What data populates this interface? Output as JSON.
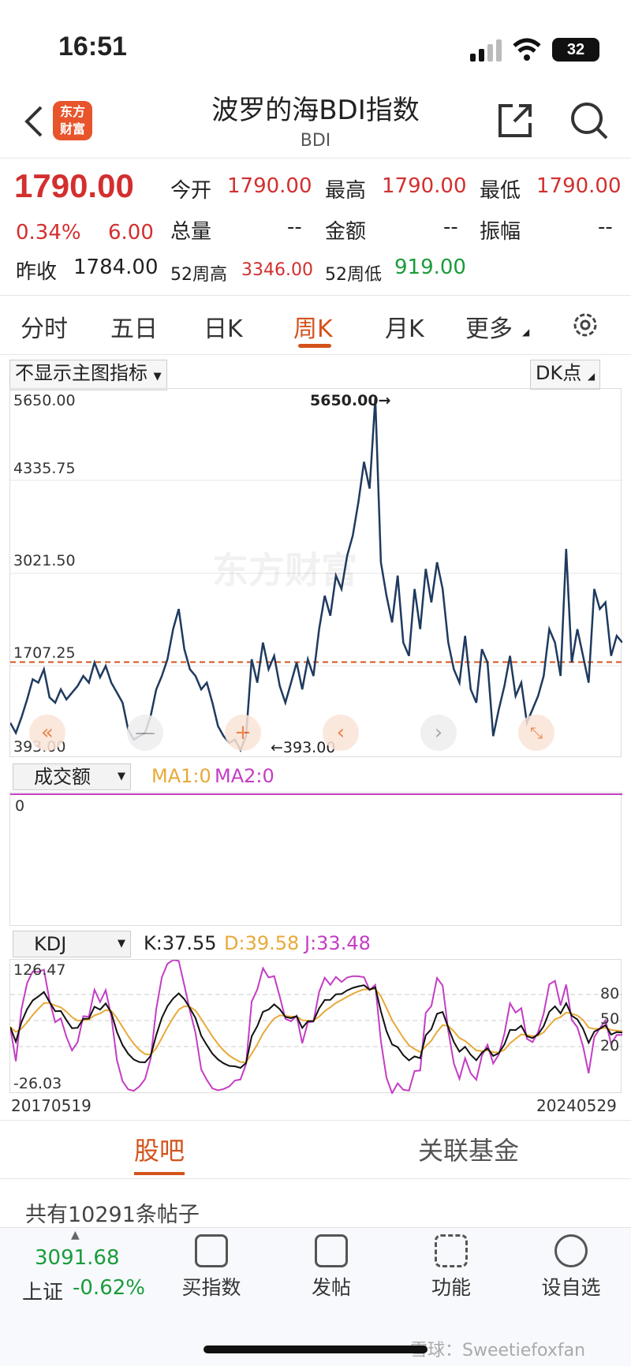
{
  "status": {
    "time": "16:51",
    "battery": "32"
  },
  "nav": {
    "logo_line1": "东方",
    "logo_line2": "财富",
    "title": "波罗的海BDI指数",
    "subtitle": "BDI"
  },
  "quote": {
    "price": "1790.00",
    "change_pct": "0.34%",
    "change": "6.00",
    "prev_close_label": "昨收",
    "prev_close": "1784.00",
    "open_label": "今开",
    "open": "1790.00",
    "high_label": "最高",
    "high": "1790.00",
    "low_label": "最低",
    "low": "1790.00",
    "volume_label": "总量",
    "volume": "--",
    "amount_label": "金额",
    "amount": "--",
    "amplitude_label": "振幅",
    "amplitude": "--",
    "wk52_high_label": "52周高",
    "wk52_high": "3346.00",
    "wk52_low_label": "52周低",
    "wk52_low": "919.00"
  },
  "tabs": [
    "分时",
    "五日",
    "日K",
    "周K",
    "月K",
    "更多"
  ],
  "active_tab": "周K",
  "chart": {
    "main_indicator_dropdown": "不显示主图指标",
    "dk_button": "DK点",
    "y_labels": [
      "5650.00",
      "4335.75",
      "3021.50",
      "1707.25",
      "393.00"
    ],
    "max_marker": "5650.00",
    "min_marker": "393.00",
    "watermark": "东方财富",
    "volume_dropdown": "成交额",
    "ma1": "MA1:0",
    "ma2": "MA2:0",
    "volume_zero": "0",
    "kdj_dropdown": "KDJ",
    "k_value": "K:37.55",
    "d_value": "D:39.58",
    "j_value": "J:33.48",
    "kdj_top": "126.47",
    "kdj_bottom": "-26.03",
    "kdj_levels": [
      "80",
      "50",
      "20"
    ],
    "start_date": "20170519",
    "end_date": "20240529"
  },
  "chart_data": {
    "type": "line",
    "series": [
      {
        "values": [
          800,
          650,
          880,
          1150,
          1450,
          1400,
          1600,
          1180,
          1100,
          1300,
          1150,
          1250,
          1350,
          1500,
          1400,
          1700,
          1480,
          1650,
          1400,
          1250,
          1100,
          700,
          550,
          600,
          650,
          900,
          1300,
          1500,
          1750,
          2200,
          2500,
          1900,
          1600,
          1500,
          1300,
          1400,
          1100,
          750,
          600,
          500,
          550,
          393,
          600,
          1750,
          1400,
          2000,
          1600,
          1800,
          1350,
          1100,
          1400,
          1700,
          1300,
          1750,
          1500,
          2200,
          2700,
          2400,
          3000,
          2800,
          3300,
          3600,
          4100,
          4700,
          4300,
          5650,
          3200,
          2700,
          2300,
          3000,
          2000,
          1800,
          2800,
          2200,
          3100,
          2600,
          3200,
          2800,
          2000,
          1600,
          1400,
          2100,
          1300,
          1100,
          1900,
          1700,
          600,
          1000,
          1350,
          1800,
          1200,
          1400,
          800,
          1000,
          1200,
          1500,
          2200,
          2000,
          1500,
          3400,
          1700,
          2200,
          1800,
          1400,
          2800,
          2500,
          2600,
          1800,
          2100,
          2000
        ]
      }
    ],
    "ylim": [
      393,
      5650
    ],
    "reference_line": 1707.25,
    "max_label": "5650.00",
    "min_label": "393.00"
  },
  "bottom_tabs": {
    "left": "股吧",
    "right": "关联基金"
  },
  "post_count_text": "共有10291条帖子",
  "toolbar": {
    "index_value": "3091.68",
    "index_label": "上证",
    "index_change": "-0.62%",
    "items": [
      "买指数",
      "发帖",
      "功能",
      "设自选"
    ]
  },
  "footer_watermark": "雪球：Sweetiefoxfan"
}
